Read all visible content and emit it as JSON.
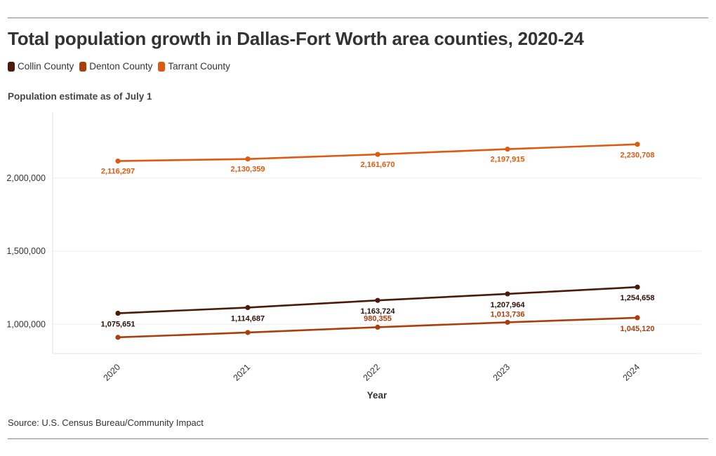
{
  "title": "Total population growth in Dallas-Fort Worth area counties, 2020-24",
  "subtitle": "Population estimate as of July 1",
  "source": "Source: U.S. Census Bureau/Community Impact",
  "legend": [
    {
      "name": "Collin County",
      "color": "#4a1a0a"
    },
    {
      "name": "Denton County",
      "color": "#a83f0e"
    },
    {
      "name": "Tarrant County",
      "color": "#dc5a12"
    }
  ],
  "chart_data": {
    "type": "line",
    "title": "Total population growth in Dallas-Fort Worth area counties, 2020-24",
    "subtitle": "Population estimate as of July 1",
    "xlabel": "Year",
    "ylabel": "",
    "x": [
      "2020",
      "2021",
      "2022",
      "2023",
      "2024"
    ],
    "ylim": [
      800000,
      2450000
    ],
    "yticks": [
      1000000,
      1500000,
      2000000
    ],
    "ytick_labels": [
      "1,000,000",
      "1,500,000",
      "2,000,000"
    ],
    "grid": true,
    "legend_position": "top-left",
    "series": [
      {
        "name": "Collin County",
        "color": "#4a1a0a",
        "values": [
          1075651,
          1114687,
          1163724,
          1207964,
          1254658
        ],
        "labels": [
          "1,075,651",
          "1,114,687",
          "1,163,724",
          "1,207,964",
          "1,254,658"
        ]
      },
      {
        "name": "Denton County",
        "color": "#a83f0e",
        "values": [
          911000,
          944000,
          980355,
          1013736,
          1045120
        ],
        "labels": [
          "",
          "",
          "980,355",
          "1,013,736",
          "1,045,120"
        ]
      },
      {
        "name": "Tarrant County",
        "color": "#dc5a12",
        "values": [
          2116297,
          2130359,
          2161670,
          2197915,
          2230708
        ],
        "labels": [
          "2,116,297",
          "2,130,359",
          "2,161,670",
          "2,197,915",
          "2,230,708"
        ]
      }
    ]
  }
}
